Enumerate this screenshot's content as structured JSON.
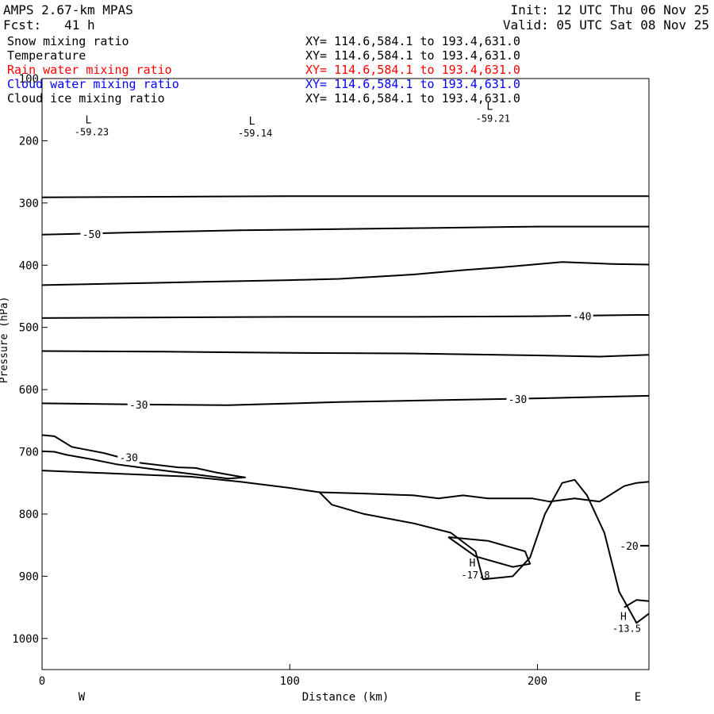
{
  "header": {
    "model": "AMPS 2.67-km MPAS",
    "forecast": "Fcst:   41 h",
    "init": "Init: 12 UTC Thu 06 Nov 25",
    "valid": "Valid: 05 UTC Sat 08 Nov 25"
  },
  "fields": [
    {
      "name": "Snow mixing ratio",
      "xy": "XY= 114.6,584.1 to 193.4,631.0",
      "color": "#000000"
    },
    {
      "name": "Temperature",
      "xy": "XY= 114.6,584.1 to 193.4,631.0",
      "color": "#000000"
    },
    {
      "name": "Rain water mixing ratio",
      "xy": "XY= 114.6,584.1 to 193.4,631.0",
      "color": "#ff0000"
    },
    {
      "name": "Cloud water mixing ratio",
      "xy": "XY= 114.6,584.1 to 193.4,631.0",
      "color": "#0000ff"
    },
    {
      "name": "Cloud ice mixing ratio",
      "xy": "XY= 114.6,584.1 to 193.4,631.0",
      "color": "#000000"
    }
  ],
  "chart_data": {
    "type": "line",
    "title": "",
    "xlabel": "Distance (km)",
    "ylabel": "Pressure (hPa)",
    "xlim": [
      0,
      245
    ],
    "ylim": [
      1050,
      100
    ],
    "x_ticks": [
      0,
      100,
      200
    ],
    "y_ticks": [
      100,
      200,
      300,
      400,
      500,
      600,
      700,
      800,
      900,
      1000
    ],
    "x_end_labels": {
      "left": "W",
      "right": "E"
    },
    "grid": false,
    "line_color": "#000000",
    "contour_labels": [
      {
        "text": "-50",
        "x": 20,
        "p": 350
      },
      {
        "text": "-40",
        "x": 218,
        "p": 482
      },
      {
        "text": "-30",
        "x": 39,
        "p": 624
      },
      {
        "text": "-30",
        "x": 192,
        "p": 615
      },
      {
        "text": "-30",
        "x": 35,
        "p": 709
      },
      {
        "text": "-20",
        "x": 237,
        "p": 851
      }
    ],
    "extrema": [
      {
        "mark": "L",
        "value": "-59.23",
        "x": 20,
        "p": 185
      },
      {
        "mark": "L",
        "value": "-59.14",
        "x": 86,
        "p": 187
      },
      {
        "mark": "L",
        "value": "-59.21",
        "x": 182,
        "p": 163
      },
      {
        "mark": "H",
        "value": "-17.8",
        "x": 175,
        "p": 897
      },
      {
        "mark": "H",
        "value": "-13.5",
        "x": 236,
        "p": 983
      }
    ],
    "series": [
      {
        "x": [
          0,
          50,
          100,
          150,
          200,
          245
        ],
        "y": [
          291,
          290,
          289,
          289,
          289,
          289
        ]
      },
      {
        "x": [
          0,
          40,
          80,
          120,
          160,
          200,
          245
        ],
        "y": [
          351,
          347,
          344,
          342,
          340,
          338,
          338
        ]
      },
      {
        "x": [
          0,
          50,
          100,
          120,
          150,
          170,
          190,
          210,
          230,
          245
        ],
        "y": [
          432,
          428,
          424,
          422,
          415,
          408,
          402,
          395,
          398,
          399
        ]
      },
      {
        "x": [
          0,
          50,
          100,
          150,
          200,
          240,
          245
        ],
        "y": [
          485,
          484,
          483,
          483,
          482,
          480,
          480
        ]
      },
      {
        "x": [
          0,
          50,
          100,
          150,
          200,
          225,
          245
        ],
        "y": [
          538,
          539,
          541,
          542,
          545,
          547,
          544
        ]
      },
      {
        "x": [
          0,
          40,
          75,
          120,
          160,
          200,
          245
        ],
        "y": [
          622,
          624,
          625,
          620,
          617,
          614,
          610
        ]
      },
      {
        "x": [
          0,
          5,
          12,
          25,
          40,
          55,
          62,
          70,
          80,
          82,
          75,
          65,
          55,
          45,
          30,
          20,
          10,
          5,
          0
        ],
        "y": [
          673,
          675,
          692,
          702,
          718,
          725,
          726,
          733,
          740,
          741,
          743,
          738,
          733,
          728,
          720,
          712,
          705,
          700,
          699
        ]
      },
      {
        "x": [
          0,
          30,
          60,
          80,
          100,
          112,
          117,
          130,
          150,
          165,
          175,
          178,
          190,
          197,
          203,
          210,
          215,
          220,
          227,
          233,
          240,
          245
        ],
        "y": [
          730,
          735,
          740,
          748,
          758,
          765,
          785,
          800,
          815,
          830,
          860,
          905,
          900,
          870,
          800,
          750,
          745,
          770,
          830,
          925,
          975,
          960
        ]
      },
      {
        "x": [
          112,
          130,
          150,
          160,
          170,
          180,
          198,
          205,
          215,
          225,
          235,
          240,
          245
        ],
        "y": [
          765,
          767,
          770,
          775,
          770,
          775,
          775,
          780,
          775,
          780,
          755,
          750,
          748
        ]
      },
      {
        "x": [
          164,
          180,
          195,
          197,
          190,
          175,
          164
        ],
        "y": [
          837,
          843,
          860,
          880,
          885,
          868,
          837
        ]
      },
      {
        "x": [
          233,
          237,
          245
        ],
        "y": [
          848,
          851,
          851
        ]
      },
      {
        "x": [
          235,
          240,
          245
        ],
        "y": [
          950,
          938,
          940
        ]
      }
    ]
  }
}
